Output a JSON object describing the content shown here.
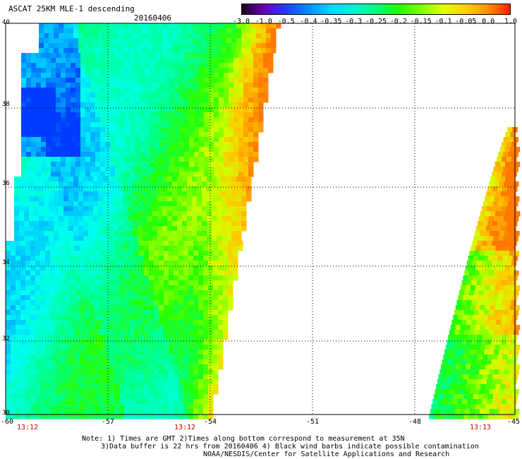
{
  "header": {
    "title": "ASCAT 25KM MLE-1 descending",
    "date": "20160406"
  },
  "colorbar": {
    "labels": [
      "-3.0",
      "-1.0",
      "-0.5",
      "-0.4",
      "-0.35",
      "-0.3",
      "-0.25",
      "-0.2",
      "-0.15",
      "-0.1",
      "-0.05",
      "0.0",
      "1.0"
    ],
    "colors": [
      "#1a001a",
      "#6a00b8",
      "#2040ff",
      "#0090ff",
      "#00d8ff",
      "#00f0d0",
      "#00ff80",
      "#20ff00",
      "#80ff00",
      "#e0ff00",
      "#ffd000",
      "#ff9000",
      "#ff2000"
    ]
  },
  "map": {
    "lon_range": [
      -60,
      -45
    ],
    "lat_range": [
      30,
      40
    ],
    "lat_labels": [
      "40",
      "38",
      "36",
      "34",
      "32",
      "30"
    ],
    "lon_labels": [
      "-60",
      "-57",
      "-54",
      "-51",
      "-48",
      "-45"
    ],
    "pass_times": [
      "13:12",
      "13:12",
      "13:13"
    ],
    "dotted_grid": true
  },
  "footer": {
    "note1": "Note: 1) Times are GMT 2)Times along bottom correspond to measurement at 35N",
    "note2": "3)Data buffer is 22 hrs from 20160406 4) Black wind barbs indicate possible contamination",
    "note3": "NOAA/NESDIS/Center for Satellite Applications and Research"
  }
}
